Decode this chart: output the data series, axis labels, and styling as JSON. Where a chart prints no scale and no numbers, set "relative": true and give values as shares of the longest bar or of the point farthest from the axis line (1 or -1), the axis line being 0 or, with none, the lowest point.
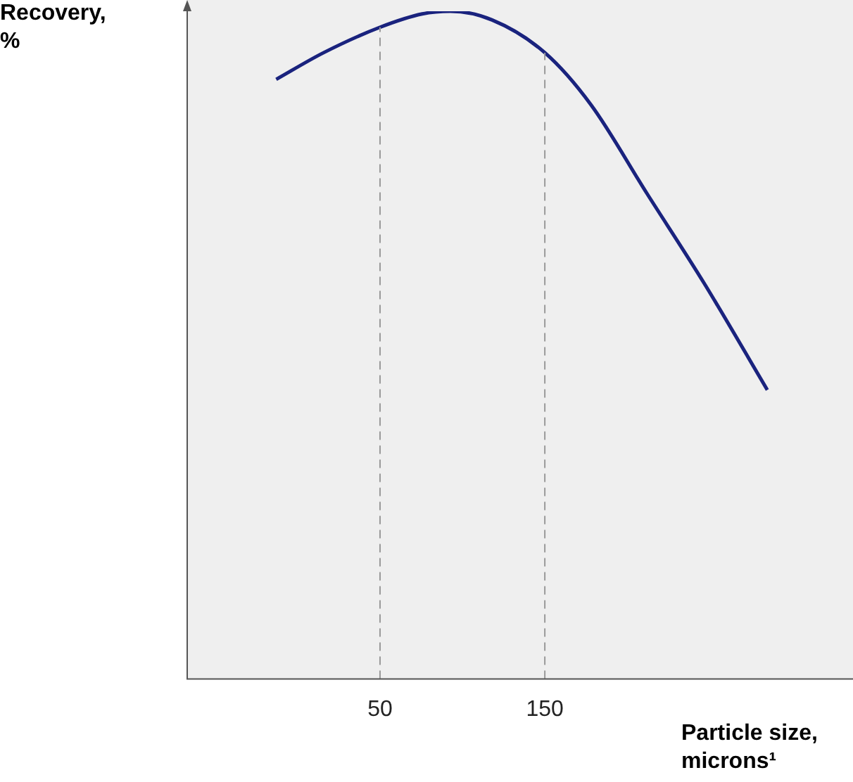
{
  "chart_data": {
    "type": "line",
    "relative": true,
    "ylabel": "Recovery, %",
    "xlabel": "Particle size, microns¹",
    "x": [
      -13,
      15.8,
      50,
      75.6,
      92.7,
      118,
      150,
      178,
      212,
      246.6,
      285
    ],
    "series": [
      {
        "color": "#1a237e",
        "values": [
          0.898,
          0.938,
          0.976,
          0.996,
          1,
          0.987,
          0.938,
          0.86,
          0.727,
          0.593,
          0.433
        ]
      }
    ],
    "xlim": [
      -67,
      337
    ],
    "xticks": [
      50,
      150
    ],
    "ref_lines": [
      {
        "axis": "x",
        "value": 50,
        "color": "#999999",
        "line_style": "dashed"
      },
      {
        "axis": "x",
        "value": 150,
        "color": "#999999",
        "line_style": "dashed"
      }
    ],
    "grid": false,
    "legend": false,
    "marker": "none",
    "line_style": "solid"
  }
}
